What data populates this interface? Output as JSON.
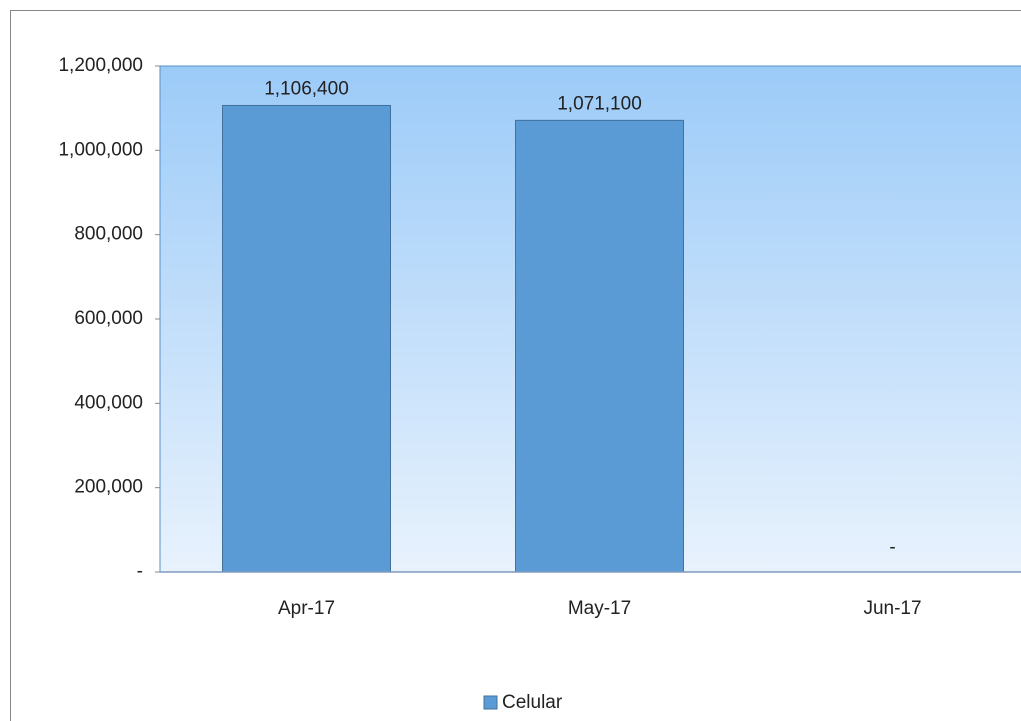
{
  "chart_data": {
    "type": "bar",
    "categories": [
      "Apr-17",
      "May-17",
      "Jun-17"
    ],
    "series": [
      {
        "name": "Celular",
        "color": "#5b9bd5",
        "values": [
          1106400,
          1071100,
          0
        ],
        "value_labels": [
          "1,106,400",
          "1,071,100",
          "-"
        ]
      }
    ],
    "ylim": [
      0,
      1200000
    ],
    "yticks": [
      {
        "value": 0,
        "label": "-"
      },
      {
        "value": 200000,
        "label": "200,000"
      },
      {
        "value": 400000,
        "label": "400,000"
      },
      {
        "value": 600000,
        "label": "600,000"
      },
      {
        "value": 800000,
        "label": "800,000"
      },
      {
        "value": 1000000,
        "label": "1,000,000"
      },
      {
        "value": 1200000,
        "label": "1,200,000"
      }
    ],
    "legend": "bottom",
    "grid": false
  }
}
